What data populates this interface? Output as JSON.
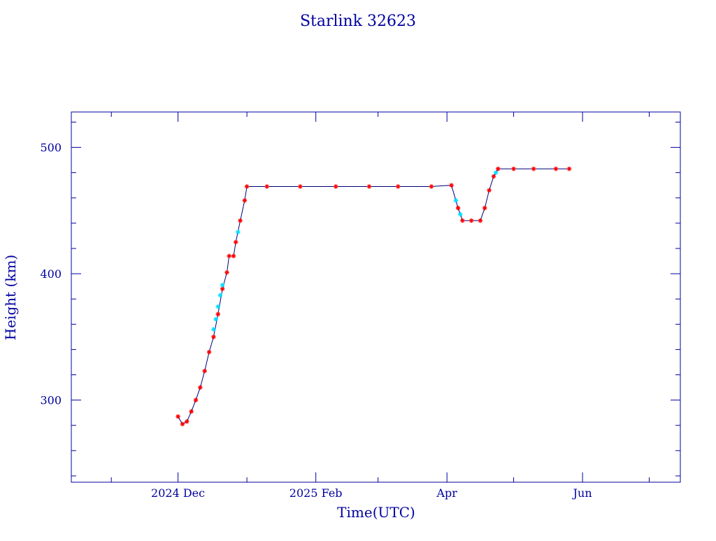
{
  "chart_data": {
    "type": "scatter",
    "title": "Starlink 32623",
    "xlabel": "Time(UTC)",
    "ylabel": "Height (km)",
    "x_axis_type": "date",
    "xlim": [
      "2024-10-14",
      "2025-07-15"
    ],
    "ylim": [
      235,
      528
    ],
    "x_ticks": [
      {
        "date": "2024-12-01",
        "label": "2024 Dec"
      },
      {
        "date": "2025-02-01",
        "label": "2025 Feb"
      },
      {
        "date": "2025-04-01",
        "label": "Apr"
      },
      {
        "date": "2025-06-01",
        "label": "Jun"
      }
    ],
    "y_ticks": [
      {
        "value": 300,
        "label": "300"
      },
      {
        "value": 400,
        "label": "400"
      },
      {
        "value": 500,
        "label": "500"
      }
    ],
    "grid": false,
    "legend": "none",
    "colors": {
      "axes": "#0000a0",
      "primary_points": "#ff0000",
      "secondary_points": "#00e0ff",
      "line": "#000080"
    },
    "series": [
      {
        "color": "#ff0000",
        "marker": "star",
        "points": [
          {
            "x": "2024-12-01",
            "y": 287
          },
          {
            "x": "2024-12-03",
            "y": 281
          },
          {
            "x": "2024-12-05",
            "y": 283
          },
          {
            "x": "2024-12-07",
            "y": 291
          },
          {
            "x": "2024-12-09",
            "y": 300
          },
          {
            "x": "2024-12-11",
            "y": 310
          },
          {
            "x": "2024-12-13",
            "y": 323
          },
          {
            "x": "2024-12-15",
            "y": 338
          },
          {
            "x": "2024-12-17",
            "y": 350
          },
          {
            "x": "2024-12-19",
            "y": 368
          },
          {
            "x": "2024-12-21",
            "y": 388
          },
          {
            "x": "2024-12-23",
            "y": 401
          },
          {
            "x": "2024-12-24",
            "y": 414
          },
          {
            "x": "2024-12-26",
            "y": 414
          },
          {
            "x": "2024-12-27",
            "y": 425
          },
          {
            "x": "2024-12-29",
            "y": 442
          },
          {
            "x": "2024-12-31",
            "y": 458
          },
          {
            "x": "2025-01-01",
            "y": 469
          },
          {
            "x": "2025-01-10",
            "y": 469
          },
          {
            "x": "2025-01-25",
            "y": 469
          },
          {
            "x": "2025-02-10",
            "y": 469
          },
          {
            "x": "2025-02-25",
            "y": 469
          },
          {
            "x": "2025-03-10",
            "y": 469
          },
          {
            "x": "2025-03-25",
            "y": 469
          },
          {
            "x": "2025-04-03",
            "y": 470
          },
          {
            "x": "2025-04-06",
            "y": 452
          },
          {
            "x": "2025-04-08",
            "y": 442
          },
          {
            "x": "2025-04-12",
            "y": 442
          },
          {
            "x": "2025-04-16",
            "y": 442
          },
          {
            "x": "2025-04-18",
            "y": 452
          },
          {
            "x": "2025-04-20",
            "y": 466
          },
          {
            "x": "2025-04-22",
            "y": 477
          },
          {
            "x": "2025-04-24",
            "y": 483
          },
          {
            "x": "2025-05-01",
            "y": 483
          },
          {
            "x": "2025-05-10",
            "y": 483
          },
          {
            "x": "2025-05-20",
            "y": 483
          },
          {
            "x": "2025-05-26",
            "y": 483
          }
        ]
      },
      {
        "color": "#00e0ff",
        "marker": "star",
        "points": [
          {
            "x": "2024-12-17",
            "y": 356
          },
          {
            "x": "2024-12-18",
            "y": 364
          },
          {
            "x": "2024-12-19",
            "y": 374
          },
          {
            "x": "2024-12-20",
            "y": 383
          },
          {
            "x": "2024-12-21",
            "y": 391
          },
          {
            "x": "2024-12-28",
            "y": 433
          },
          {
            "x": "2025-04-05",
            "y": 458
          },
          {
            "x": "2025-04-07",
            "y": 447
          },
          {
            "x": "2025-04-23",
            "y": 480
          }
        ]
      }
    ]
  }
}
